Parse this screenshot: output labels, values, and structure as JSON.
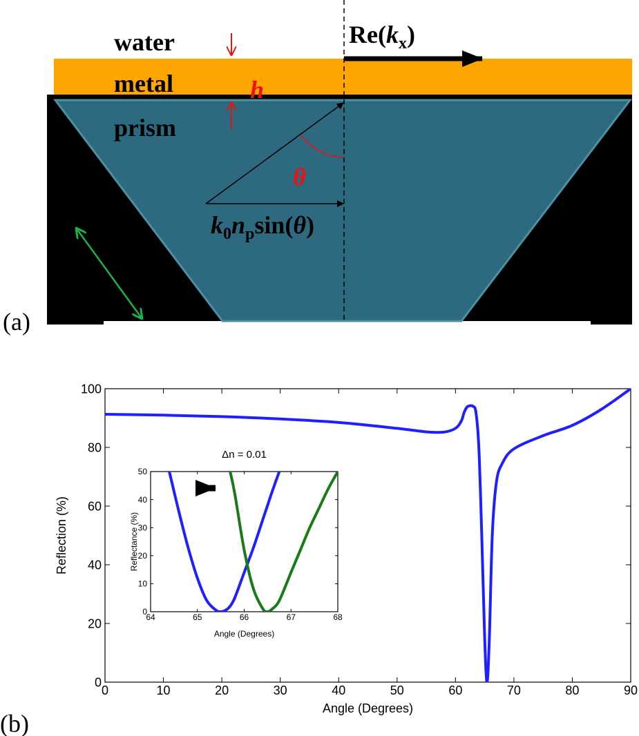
{
  "diagram": {
    "panel_label": "(a)",
    "layers": [
      "water",
      "metal",
      "prism"
    ],
    "thickness": "h",
    "wavevector": [
      "Re(",
      "k",
      "x",
      ")"
    ],
    "angle": "θ",
    "projection": [
      "k",
      "0",
      "n",
      "p",
      "sin(",
      "θ",
      ")"
    ]
  },
  "chart_data": [
    {
      "type": "line",
      "panel_label": "(b)",
      "xlabel": "Angle (Degrees)",
      "ylabel": "Reflection (%)",
      "xlim": [
        0,
        90
      ],
      "ylim": [
        0,
        100
      ],
      "xticks": [
        0,
        10,
        20,
        30,
        40,
        50,
        60,
        70,
        80,
        90
      ],
      "yticks": [
        0,
        20,
        40,
        60,
        80,
        100
      ],
      "x": [
        0,
        10,
        20,
        30,
        40,
        50,
        55,
        58,
        60,
        61,
        61.5,
        62,
        62.5,
        63,
        63.5,
        64,
        64.5,
        65,
        65.4,
        65.8,
        66.3,
        67,
        68,
        70,
        75,
        80,
        85,
        90
      ],
      "series": [
        {
          "color": "#1f1fff",
          "values": [
            91.3,
            91,
            90.5,
            89.7,
            88.5,
            86.5,
            85.3,
            85.2,
            86.5,
            89,
            92,
            93.8,
            94.2,
            94,
            92,
            80,
            50,
            15,
            0,
            15,
            50,
            68,
            74.5,
            79.5,
            84,
            87.5,
            93,
            100
          ]
        }
      ]
    },
    {
      "type": "line",
      "title": "Δn = 0.01",
      "xlabel": "Angle (Degrees)",
      "ylabel": "Reflectance (%)",
      "xlim": [
        64,
        68
      ],
      "ylim": [
        0,
        50
      ],
      "xticks": [
        64,
        65,
        66,
        67,
        68
      ],
      "yticks": [
        0,
        10,
        20,
        30,
        40,
        50
      ],
      "x": [
        64.4,
        64.6,
        64.8,
        65.0,
        65.2,
        65.4,
        65.5,
        65.6,
        65.7,
        65.8,
        66.0,
        66.2,
        66.4,
        66.5,
        66.6,
        66.75,
        67.0,
        67.2,
        67.4,
        67.6,
        67.8,
        68.0
      ],
      "series": [
        {
          "color": "#1f1fff",
          "values": [
            50,
            36,
            23,
            12,
            4,
            0.5,
            0,
            0.5,
            2,
            5,
            14,
            23,
            33,
            38,
            43,
            50,
            null,
            null,
            null,
            null,
            null,
            null
          ]
        },
        {
          "color": "#1a7a1a",
          "values": [
            null,
            null,
            null,
            null,
            null,
            null,
            null,
            null,
            50,
            42,
            22,
            8,
            1,
            0,
            1,
            4,
            14,
            22,
            30,
            37,
            44,
            50
          ]
        }
      ]
    }
  ]
}
